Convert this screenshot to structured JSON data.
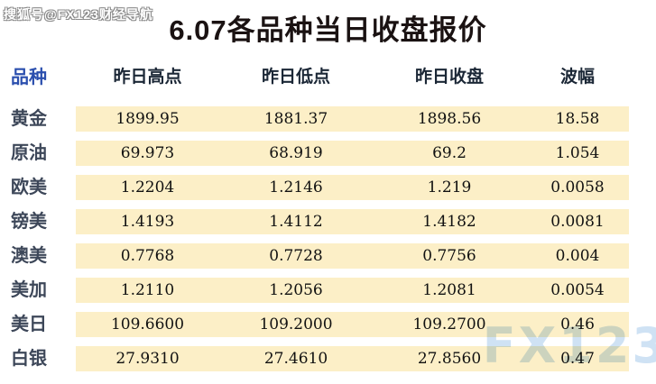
{
  "watermarks": {
    "top_left": "搜狐号@FX123财经导航",
    "bottom_right": "FX123"
  },
  "title": "6.07各品种当日收盘报价",
  "chart_data": {
    "type": "table",
    "title": "6.07各品种当日收盘报价",
    "columns": [
      "品种",
      "昨日高点",
      "昨日低点",
      "昨日收盘",
      "波幅"
    ],
    "rows": [
      {
        "name": "黄金",
        "high": "1899.95",
        "low": "1881.37",
        "close": "1898.56",
        "range": "18.58"
      },
      {
        "name": "原油",
        "high": "69.973",
        "low": "68.919",
        "close": "69.2",
        "range": "1.054"
      },
      {
        "name": "欧美",
        "high": "1.2204",
        "low": "1.2146",
        "close": "1.219",
        "range": "0.0058"
      },
      {
        "name": "镑美",
        "high": "1.4193",
        "low": "1.4112",
        "close": "1.4182",
        "range": "0.0081"
      },
      {
        "name": "澳美",
        "high": "0.7768",
        "low": "0.7728",
        "close": "0.7756",
        "range": "0.004"
      },
      {
        "name": "美加",
        "high": "1.2110",
        "low": "1.2056",
        "close": "1.2081",
        "range": "0.0054"
      },
      {
        "name": "美日",
        "high": "109.6600",
        "low": "109.2000",
        "close": "109.2700",
        "range": "0.46"
      },
      {
        "name": "白银",
        "high": "27.9310",
        "low": "27.4610",
        "close": "27.8560",
        "range": "0.47"
      }
    ]
  },
  "colors": {
    "row_band": "#FCEFC7",
    "header_accent_blue": "#2B4FAE",
    "header_text": "#1B2736",
    "row_label_text": "#3D4759",
    "number_text": "#111111",
    "title_text": "#1A1212",
    "watermark_blue": "#CFE2F4"
  }
}
